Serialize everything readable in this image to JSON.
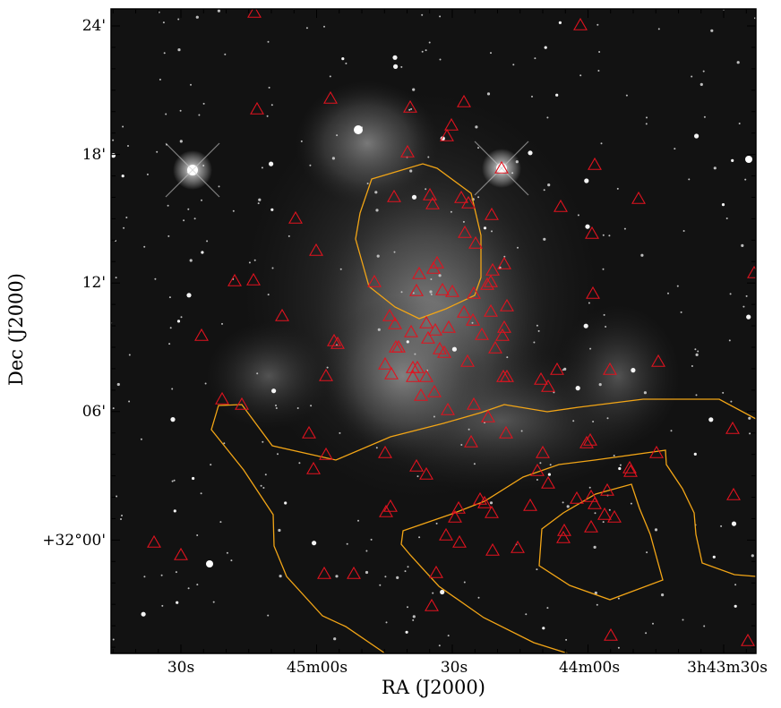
{
  "figure": {
    "x_axis_title": "RA (J2000)",
    "y_axis_title": "Dec (J2000)",
    "y_ticks": [
      "24'",
      "18'",
      "12'",
      "06'",
      "+32°00'"
    ],
    "x_ticks": [
      "30s",
      "45m00s",
      "30s",
      "44m00s",
      "3h43m30s"
    ],
    "colors": {
      "markers": "#e0131f",
      "contours": "#f2a516",
      "background": "#101010",
      "frame": "#000000"
    },
    "image_content": "grayscale reflection nebula star field with red triangle source markers and orange contour lines"
  }
}
